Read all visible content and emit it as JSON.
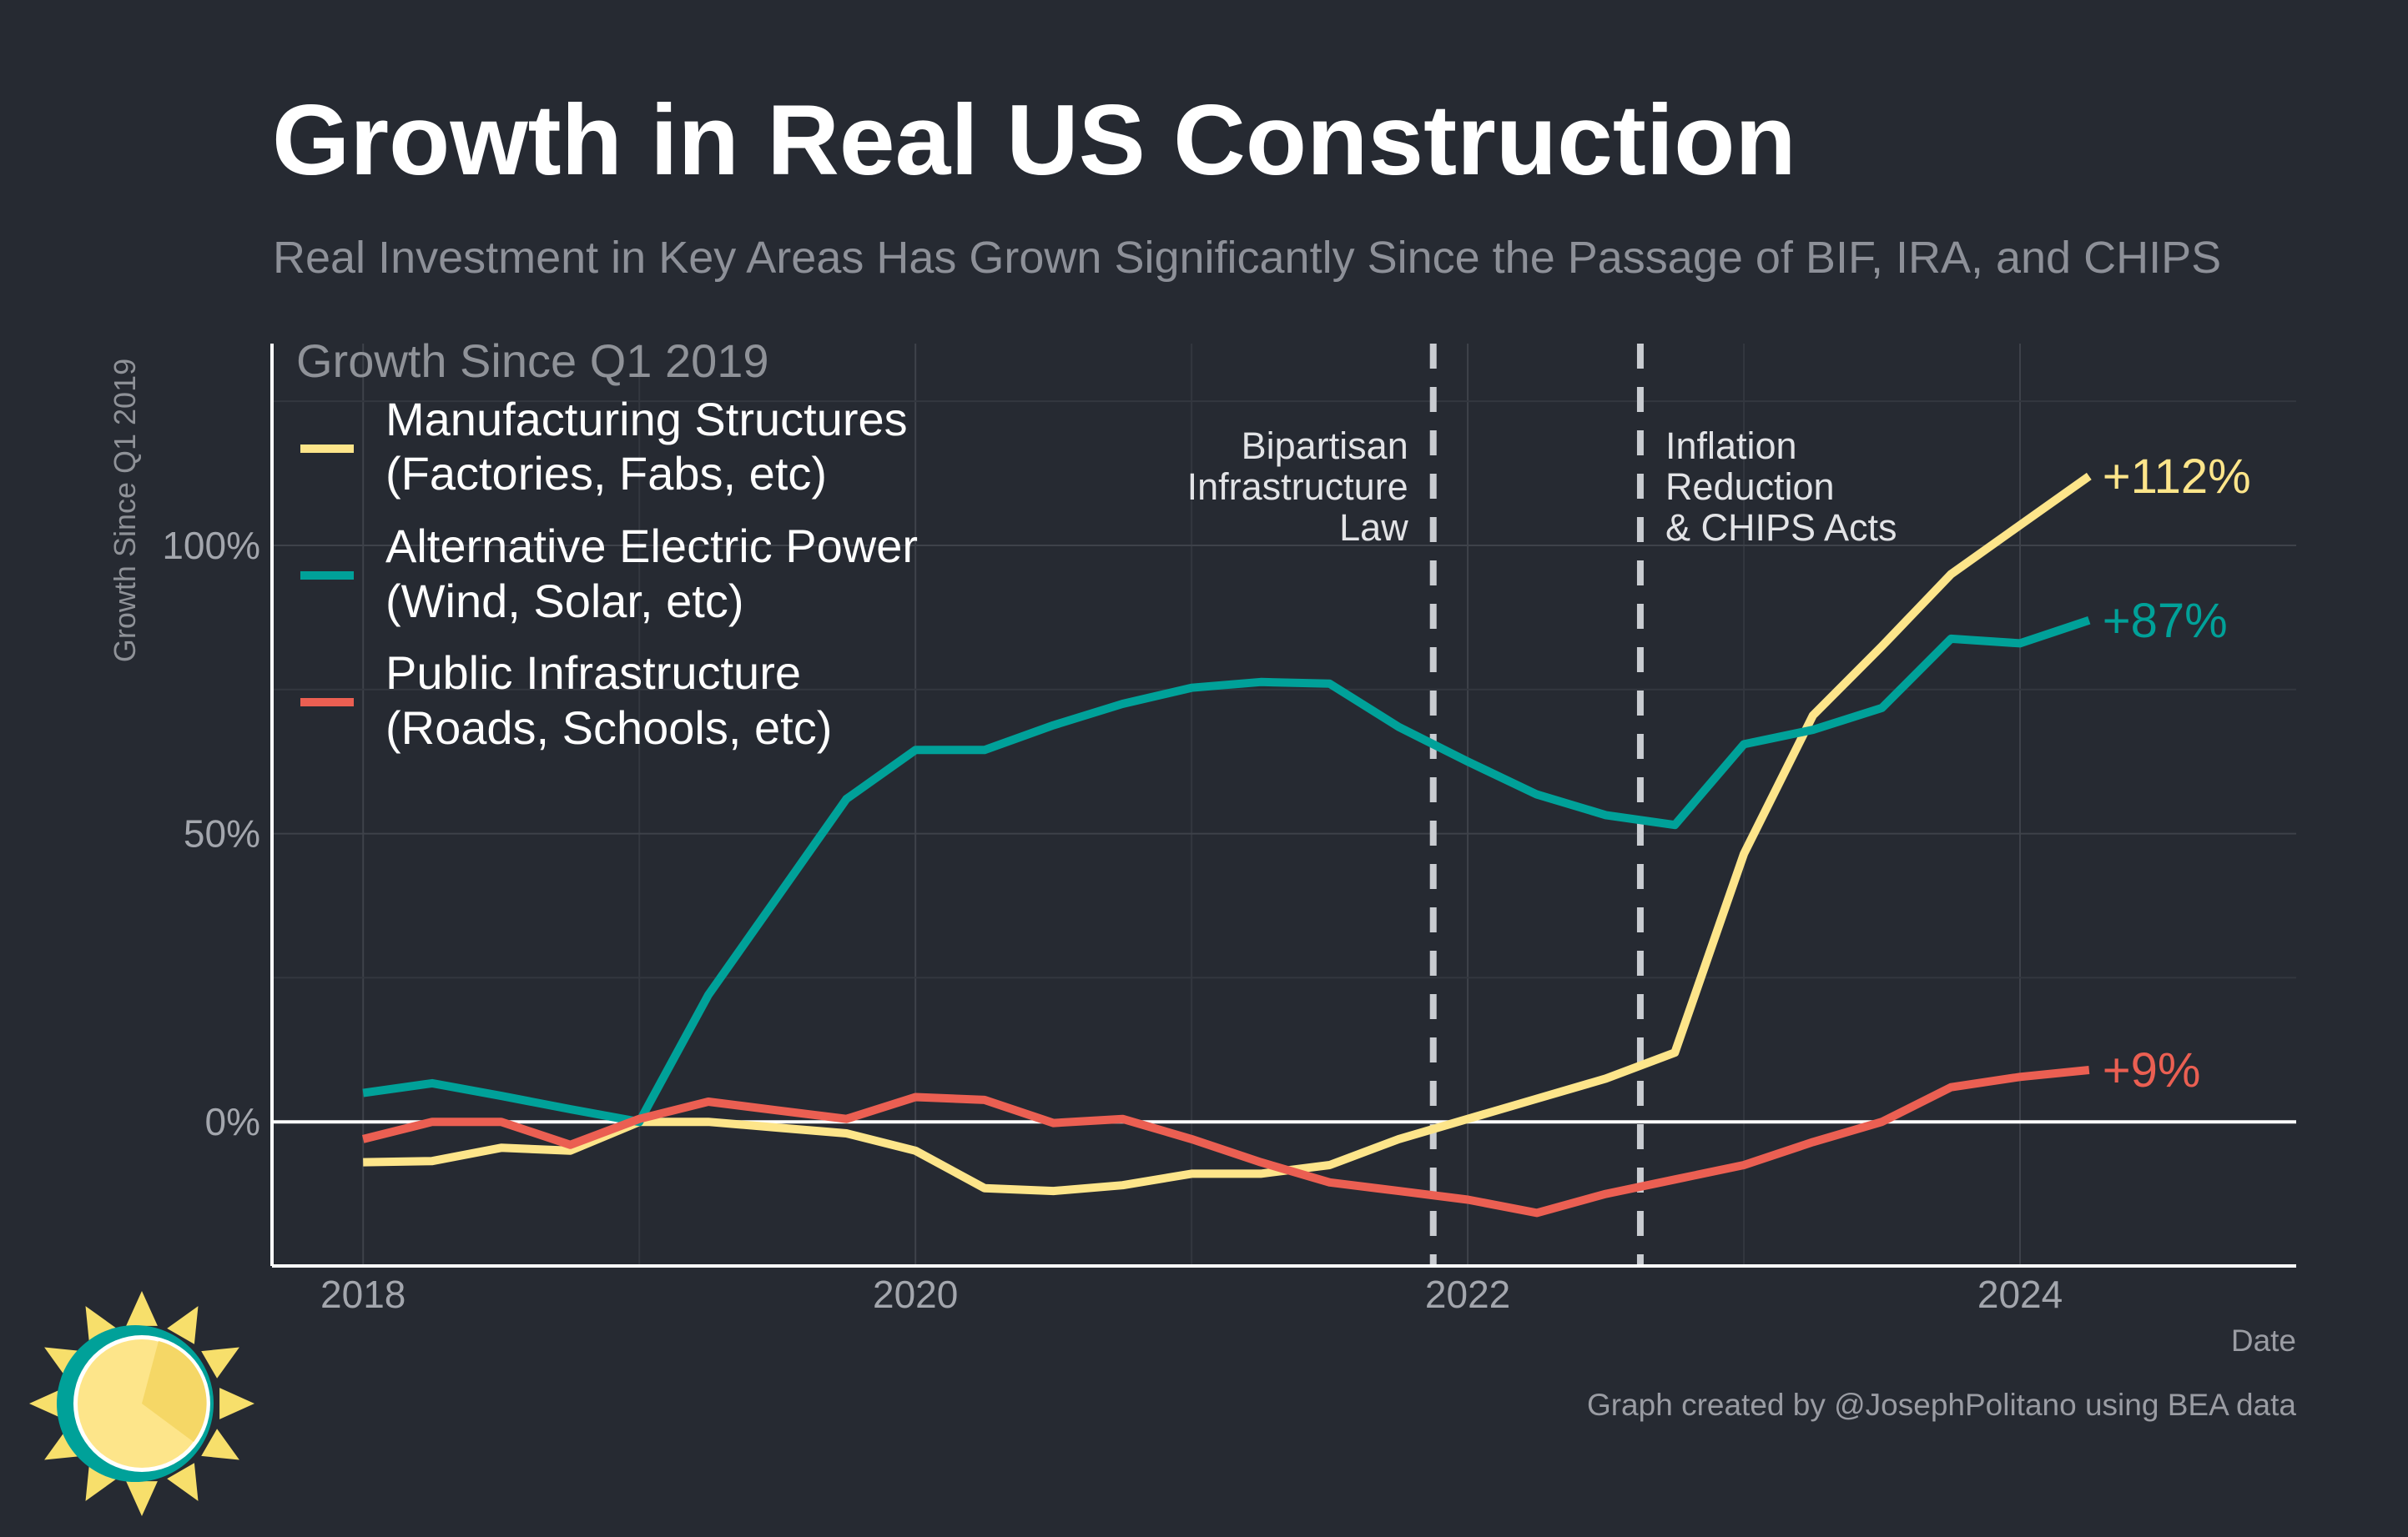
{
  "header": {
    "title": "Growth in Real US Construction",
    "subtitle": "Real Investment in Key Areas Has Grown Significantly Since the Passage of BIF, IRA, and CHIPS"
  },
  "footer": {
    "credit": "Graph created by @JosephPolitano using BEA data"
  },
  "chart_data": {
    "type": "line",
    "ylabel": "Growth Since Q1 2019",
    "xlabel": "Date",
    "legend_title": "Growth Since Q1 2019",
    "legend_position": "top-left",
    "xlim": [
      2017.67,
      2025
    ],
    "ylim": [
      -25,
      135
    ],
    "x_ticks": [
      {
        "value": 2018,
        "label": "2018"
      },
      {
        "value": 2020,
        "label": "2020"
      },
      {
        "value": 2022,
        "label": "2022"
      },
      {
        "value": 2024,
        "label": "2024"
      }
    ],
    "y_ticks": [
      {
        "value": 0,
        "label": "0%"
      },
      {
        "value": 50,
        "label": "50%"
      },
      {
        "value": 100,
        "label": "100%"
      }
    ],
    "grid": true,
    "minor_grid_x": [
      2019,
      2021,
      2023
    ],
    "minor_grid_y": [
      25,
      75,
      125
    ],
    "annotations": [
      {
        "x": 2021.875,
        "lines": [
          "Bipartisan",
          "Infrastructure",
          "Law"
        ],
        "align": "right"
      },
      {
        "x": 2022.625,
        "lines": [
          "Inflation",
          "Reduction",
          "& CHIPS Acts"
        ],
        "align": "left"
      }
    ],
    "series": [
      {
        "name": "Manufacturing Structures",
        "name_line2": "(Factories, Fabs, etc)",
        "color": "#fde58a",
        "end_label": "+112%",
        "x": [
          2018,
          2018.25,
          2018.5,
          2018.75,
          2019,
          2019.25,
          2019.5,
          2019.75,
          2020,
          2020.25,
          2020.5,
          2020.75,
          2021,
          2021.25,
          2021.5,
          2021.75,
          2022,
          2022.25,
          2022.5,
          2022.75,
          2023,
          2023.25,
          2023.5,
          2023.75,
          2024,
          2024.25
        ],
        "values": [
          -7,
          -6.8,
          -4.5,
          -5,
          0,
          0,
          -1,
          -2,
          -5,
          -11.5,
          -12,
          -11,
          -9,
          -9,
          -7.5,
          -3,
          0.5,
          4,
          7.5,
          12,
          46.5,
          70.5,
          82.5,
          95,
          103.5,
          112
        ]
      },
      {
        "name": "Alternative Electric Power",
        "name_line2": "(Wind, Solar, etc)",
        "color": "#00a199",
        "end_label": "+87%",
        "x": [
          2018,
          2018.25,
          2018.5,
          2018.75,
          2019,
          2019.25,
          2019.5,
          2019.75,
          2020,
          2020.25,
          2020.5,
          2020.75,
          2021,
          2021.25,
          2021.5,
          2021.75,
          2022,
          2022.25,
          2022.5,
          2022.75,
          2023,
          2023.25,
          2023.5,
          2023.75,
          2024,
          2024.25
        ],
        "values": [
          5,
          6.7,
          4.5,
          2.2,
          0,
          22,
          39,
          56,
          64.5,
          64.5,
          68.8,
          72.5,
          75.3,
          76.3,
          76,
          68.5,
          62.5,
          56.8,
          53.2,
          51.5,
          65.5,
          68,
          71.8,
          83.8,
          83,
          87
        ]
      },
      {
        "name": "Public Infrastructure",
        "name_line2": "(Roads, Schools, etc)",
        "color": "#eb5f52",
        "end_label": "+9%",
        "x": [
          2018,
          2018.25,
          2018.5,
          2018.75,
          2019,
          2019.25,
          2019.5,
          2019.75,
          2020,
          2020.25,
          2020.5,
          2020.75,
          2021,
          2021.25,
          2021.5,
          2021.75,
          2022,
          2022.25,
          2022.5,
          2022.75,
          2023,
          2023.25,
          2023.5,
          2023.75,
          2024,
          2024.25
        ],
        "values": [
          -3,
          0,
          0,
          -4,
          0.5,
          3.5,
          2,
          0.5,
          4.3,
          3.8,
          -0.2,
          0.5,
          -3,
          -7,
          -10.5,
          -12,
          -13.5,
          -15.8,
          -12.5,
          -10,
          -7.5,
          -3.5,
          0,
          6,
          7.8,
          9
        ]
      }
    ]
  }
}
